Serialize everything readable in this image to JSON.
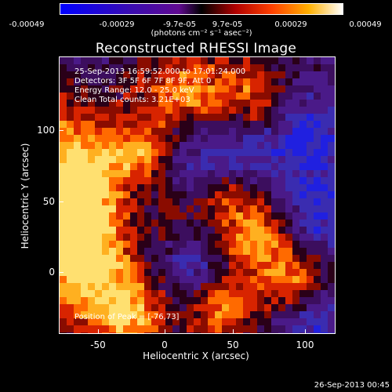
{
  "colorbar": {
    "ticks": [
      "-0.00049",
      "-0.00029",
      "-9.7e-05",
      "9.7e-05",
      "0.00029",
      "0.00049"
    ],
    "units": "(photons cm⁻² s⁻¹ asec⁻²)"
  },
  "title": "Reconstructed RHESSI Image",
  "info": {
    "time_range": "25-Sep-2013 16:59:52.000 to 17:01:24.000",
    "detectors": "Detectors: 3F 5F 6F 7F 8F 9F, Att 0",
    "energy": "Energy Range: 12.0 - 25.0 keV",
    "clean": "Clean     Total counts: 3.21E+03"
  },
  "peak": "Position of Peak = [-76,73]",
  "timestamp": "26-Sep-2013 00:45",
  "chart_data": {
    "type": "heatmap",
    "title": "Reconstructed RHESSI Image",
    "xlabel": "Heliocentric X (arcsec)",
    "ylabel": "Heliocentric Y (arcsec)",
    "xlim": [
      -77,
      115
    ],
    "ylim": [
      -43,
      150
    ],
    "xticks": [
      "-50",
      "0",
      "50",
      "100"
    ],
    "yticks": [
      "0",
      "50",
      "100"
    ],
    "x_tick_values": [
      -50,
      0,
      50,
      100
    ],
    "y_tick_values": [
      0,
      50,
      100
    ],
    "colorscale_range": [
      -0.00049,
      0.00049
    ],
    "peak_position": [
      -76,
      73
    ]
  }
}
